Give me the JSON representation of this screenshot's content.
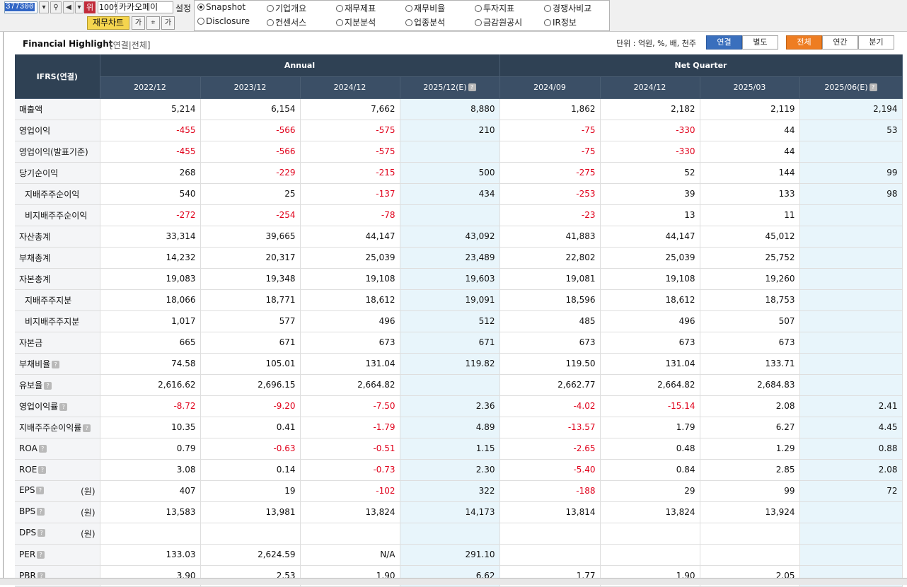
{
  "toolbar": {
    "code": "377300",
    "position_label": "위",
    "zoom": "100%",
    "company": "카카오페이",
    "settings_label": "설정",
    "chart_button": "재무차트"
  },
  "menu": {
    "row1": [
      "Snapshot",
      "기업개요",
      "재무제표",
      "재무비율",
      "투자지표",
      "경쟁사비교"
    ],
    "row2": [
      "Disclosure",
      "컨센서스",
      "지분분석",
      "업종분석",
      "금감원공시",
      "IR정보"
    ],
    "selected": "Snapshot"
  },
  "header": {
    "title": "Financial Highlight",
    "subtitle": "[연결|전체]",
    "unit": "단위 : 억원, %, 배, 천주",
    "basis_tabs": [
      "연결",
      "별도"
    ],
    "period_tabs": [
      "전체",
      "연간",
      "분기"
    ]
  },
  "table": {
    "corner": "IFRS(연결)",
    "group_annual": "Annual",
    "group_quarter": "Net Quarter",
    "columns": [
      "2022/12",
      "2023/12",
      "2024/12",
      "2025/12(E)",
      "2024/09",
      "2024/12",
      "2025/03",
      "2025/06(E)"
    ],
    "estimate_columns": [
      3,
      7
    ],
    "rows": [
      {
        "label": "매출액",
        "values": [
          "5,214",
          "6,154",
          "7,662",
          "8,880",
          "1,862",
          "2,182",
          "2,119",
          "2,194"
        ]
      },
      {
        "label": "영업이익",
        "values": [
          "-455",
          "-566",
          "-575",
          "210",
          "-75",
          "-330",
          "44",
          "53"
        ]
      },
      {
        "label": "영업이익(발표기준)",
        "values": [
          "-455",
          "-566",
          "-575",
          "",
          "-75",
          "-330",
          "44",
          ""
        ]
      },
      {
        "label": "당기순이익",
        "values": [
          "268",
          "-229",
          "-215",
          "500",
          "-275",
          "52",
          "144",
          "99"
        ]
      },
      {
        "label": "지배주주순이익",
        "indent": true,
        "values": [
          "540",
          "25",
          "-137",
          "434",
          "-253",
          "39",
          "133",
          "98"
        ]
      },
      {
        "label": "비지배주주순이익",
        "indent": true,
        "values": [
          "-272",
          "-254",
          "-78",
          "",
          "-23",
          "13",
          "11",
          ""
        ]
      },
      {
        "label": "자산총계",
        "values": [
          "33,314",
          "39,665",
          "44,147",
          "43,092",
          "41,883",
          "44,147",
          "45,012",
          ""
        ]
      },
      {
        "label": "부채총계",
        "values": [
          "14,232",
          "20,317",
          "25,039",
          "23,489",
          "22,802",
          "25,039",
          "25,752",
          ""
        ]
      },
      {
        "label": "자본총계",
        "values": [
          "19,083",
          "19,348",
          "19,108",
          "19,603",
          "19,081",
          "19,108",
          "19,260",
          ""
        ]
      },
      {
        "label": "지배주주지분",
        "indent": true,
        "values": [
          "18,066",
          "18,771",
          "18,612",
          "19,091",
          "18,596",
          "18,612",
          "18,753",
          ""
        ]
      },
      {
        "label": "비지배주주지분",
        "indent": true,
        "values": [
          "1,017",
          "577",
          "496",
          "512",
          "485",
          "496",
          "507",
          ""
        ]
      },
      {
        "label": "자본금",
        "values": [
          "665",
          "671",
          "673",
          "671",
          "673",
          "673",
          "673",
          ""
        ]
      },
      {
        "label": "부채비율",
        "help": true,
        "values": [
          "74.58",
          "105.01",
          "131.04",
          "119.82",
          "119.50",
          "131.04",
          "133.71",
          ""
        ]
      },
      {
        "label": "유보율",
        "help": true,
        "values": [
          "2,616.62",
          "2,696.15",
          "2,664.82",
          "",
          "2,662.77",
          "2,664.82",
          "2,684.83",
          ""
        ]
      },
      {
        "label": "영업이익률",
        "help": true,
        "values": [
          "-8.72",
          "-9.20",
          "-7.50",
          "2.36",
          "-4.02",
          "-15.14",
          "2.08",
          "2.41"
        ]
      },
      {
        "label": "지배주주순이익률",
        "help": true,
        "values": [
          "10.35",
          "0.41",
          "-1.79",
          "4.89",
          "-13.57",
          "1.79",
          "6.27",
          "4.45"
        ]
      },
      {
        "label": "ROA",
        "help": true,
        "values": [
          "0.79",
          "-0.63",
          "-0.51",
          "1.15",
          "-2.65",
          "0.48",
          "1.29",
          "0.88"
        ]
      },
      {
        "label": "ROE",
        "help": true,
        "values": [
          "3.08",
          "0.14",
          "-0.73",
          "2.30",
          "-5.40",
          "0.84",
          "2.85",
          "2.08"
        ]
      },
      {
        "label": "EPS",
        "help": true,
        "unit": "(원)",
        "values": [
          "407",
          "19",
          "-102",
          "322",
          "-188",
          "29",
          "99",
          "72"
        ]
      },
      {
        "label": "BPS",
        "help": true,
        "unit": "(원)",
        "values": [
          "13,583",
          "13,981",
          "13,824",
          "14,173",
          "13,814",
          "13,824",
          "13,924",
          ""
        ]
      },
      {
        "label": "DPS",
        "help": true,
        "unit": "(원)",
        "values": [
          "",
          "",
          "",
          "",
          "",
          "",
          "",
          ""
        ]
      },
      {
        "label": "PER",
        "help": true,
        "values": [
          "133.03",
          "2,624.59",
          "N/A",
          "291.10",
          "",
          "",
          "",
          ""
        ]
      },
      {
        "label": "PBR",
        "help": true,
        "values": [
          "3.90",
          "2.53",
          "1.90",
          "6.62",
          "1.77",
          "1.90",
          "2.05",
          ""
        ]
      }
    ]
  },
  "colors": {
    "header_bg": "#2f4154",
    "estimate_bg": "#e8f5fb",
    "negative": "#e0001a",
    "tab_blue": "#3a6fbd",
    "tab_orange": "#ee7d22"
  }
}
